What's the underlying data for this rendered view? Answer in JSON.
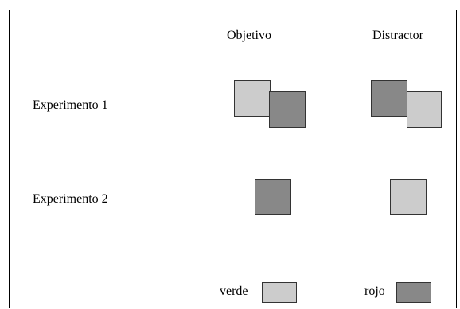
{
  "headers": {
    "target": "Objetivo",
    "distractor": "Distractor"
  },
  "rows": [
    {
      "label": "Experimento 1"
    },
    {
      "label": "Experimento 2"
    }
  ],
  "legend": {
    "green_label": "verde",
    "red_label": "rojo"
  },
  "colors": {
    "light_square": "#cccccc",
    "dark_square": "#888888",
    "border": "#000000"
  }
}
